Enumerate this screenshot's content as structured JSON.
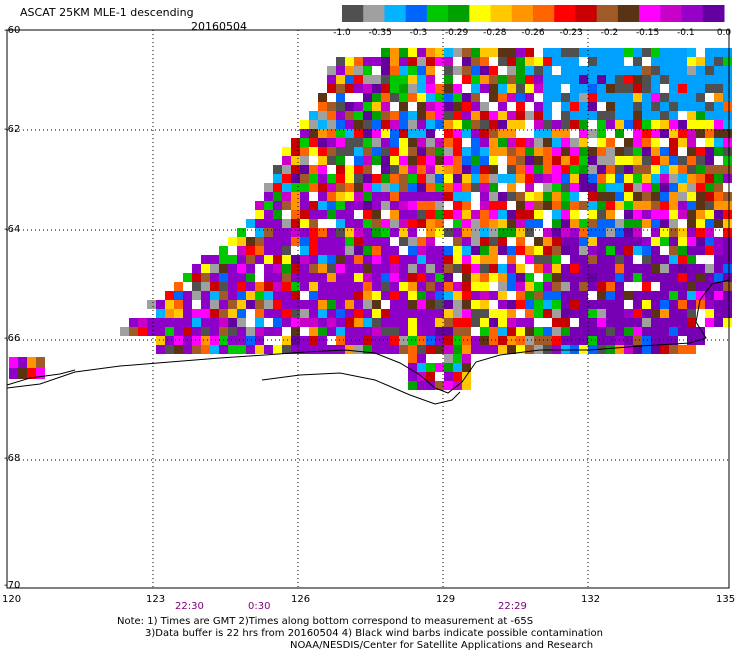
{
  "header": {
    "title": "ASCAT 25KM MLE-1 descending",
    "date": "20160504"
  },
  "colorbar": {
    "colors": [
      "#505050",
      "#a0a0a0",
      "#00b4ff",
      "#0064ff",
      "#00c800",
      "#00a000",
      "#ffff00",
      "#ffc800",
      "#ff9600",
      "#ff6400",
      "#ff0000",
      "#c80000",
      "#a05a28",
      "#5a3214",
      "#ff00ff",
      "#c800c8",
      "#9600c8",
      "#6400a0"
    ],
    "labels": [
      "-1.0",
      "-0.35",
      "-0.3",
      "-0.29",
      "-0.28",
      "-0.26",
      "-0.23",
      "-0.2",
      "-0.15",
      "-0.1",
      "0.0"
    ]
  },
  "axes": {
    "lat_labels": [
      "-60",
      "-62",
      "-64",
      "-66",
      "-68",
      "-70"
    ],
    "lon_labels": [
      "120",
      "123",
      "126",
      "129",
      "132",
      "135"
    ]
  },
  "time_labels": [
    "22:30",
    "0:30",
    "22:29"
  ],
  "notes": [
    "Note: 1) Times are GMT 2)Times along bottom correspond to measurement at -65S",
    "3)Data buffer is 22 hrs from 20160504 4) Black wind barbs indicate possible contamination",
    "NOAA/NESDIS/Center for Satellite Applications and Research"
  ]
}
